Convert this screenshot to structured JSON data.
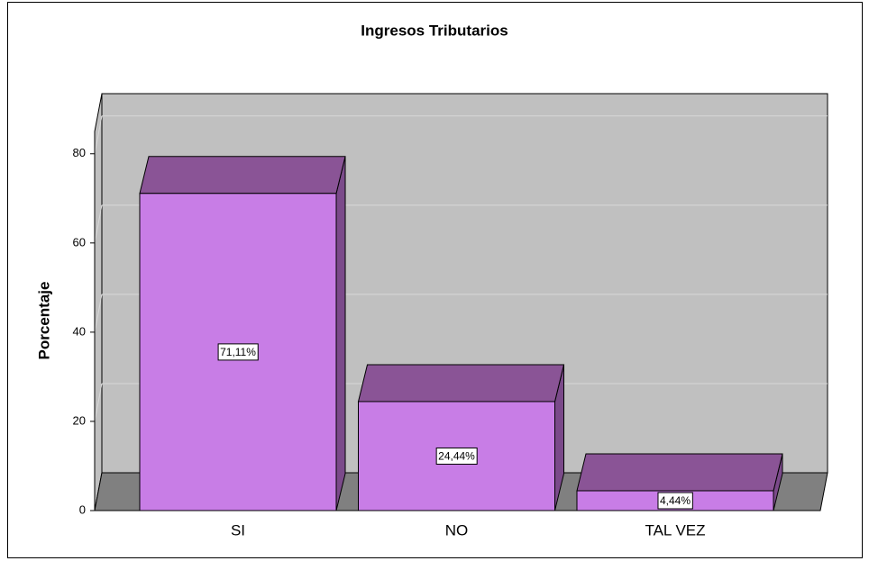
{
  "chart_data": {
    "type": "bar3d",
    "title": "Ingresos Tributarios",
    "y_label": "Porcentaje",
    "categories": [
      "SI",
      "NO",
      "TAL VEZ"
    ],
    "values": [
      71.11,
      24.44,
      4.44
    ],
    "value_labels": [
      "71,11%",
      "24,44%",
      "4,44%"
    ],
    "color": "#c87de6",
    "ylim": [
      0,
      85
    ],
    "yticks": [
      0,
      20,
      40,
      60,
      80
    ],
    "grid": true
  }
}
